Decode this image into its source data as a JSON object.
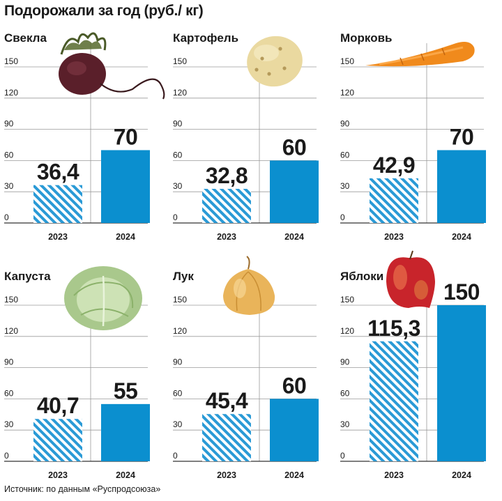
{
  "title": "Подорожали за год (руб./ кг)",
  "source": "Источник: по данным «Руспродсоюза»",
  "colors": {
    "bar_2024": "#0b8fcf",
    "bar_2023_hatch": "#2a9ad6",
    "gridline": "#9a9a9a",
    "text": "#1a1a1a"
  },
  "chart_data": [
    {
      "type": "bar",
      "title": "Свекла",
      "icon": "beet-icon",
      "categories": [
        "2023",
        "2024"
      ],
      "values": [
        36.4,
        70
      ],
      "value_labels": [
        "36,4",
        "70"
      ],
      "yticks": [
        0,
        30,
        60,
        90,
        120,
        150
      ],
      "ylim": [
        0,
        150
      ],
      "grid": true
    },
    {
      "type": "bar",
      "title": "Картофель",
      "icon": "potato-icon",
      "categories": [
        "2023",
        "2024"
      ],
      "values": [
        32.8,
        60
      ],
      "value_labels": [
        "32,8",
        "60"
      ],
      "yticks": [
        0,
        30,
        60,
        90,
        120,
        150
      ],
      "ylim": [
        0,
        150
      ],
      "grid": true
    },
    {
      "type": "bar",
      "title": "Морковь",
      "icon": "carrot-icon",
      "categories": [
        "2023",
        "2024"
      ],
      "values": [
        42.9,
        70
      ],
      "value_labels": [
        "42,9",
        "70"
      ],
      "yticks": [
        0,
        30,
        60,
        90,
        120,
        150
      ],
      "ylim": [
        0,
        150
      ],
      "grid": true
    },
    {
      "type": "bar",
      "title": "Капуста",
      "icon": "cabbage-icon",
      "categories": [
        "2023",
        "2024"
      ],
      "values": [
        40.7,
        55
      ],
      "value_labels": [
        "40,7",
        "55"
      ],
      "yticks": [
        0,
        30,
        60,
        90,
        120,
        150
      ],
      "ylim": [
        0,
        150
      ],
      "grid": true
    },
    {
      "type": "bar",
      "title": "Лук",
      "icon": "onion-icon",
      "categories": [
        "2023",
        "2024"
      ],
      "values": [
        45.4,
        60
      ],
      "value_labels": [
        "45,4",
        "60"
      ],
      "yticks": [
        0,
        30,
        60,
        90,
        120,
        150
      ],
      "ylim": [
        0,
        150
      ],
      "grid": true
    },
    {
      "type": "bar",
      "title": "Яблоки",
      "icon": "apple-icon",
      "categories": [
        "2023",
        "2024"
      ],
      "values": [
        115.3,
        150
      ],
      "value_labels": [
        "115,3",
        "150"
      ],
      "yticks": [
        0,
        30,
        60,
        90,
        120,
        150
      ],
      "ylim": [
        0,
        150
      ],
      "grid": true
    }
  ]
}
